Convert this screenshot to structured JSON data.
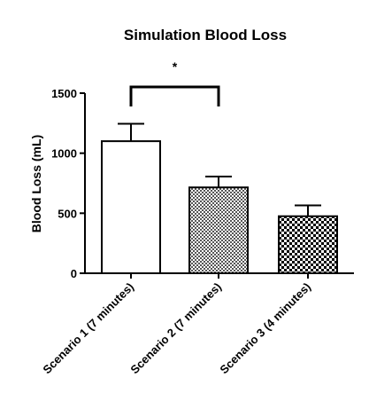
{
  "chart_data": {
    "type": "bar",
    "title": "Simulation Blood Loss",
    "xlabel": "",
    "ylabel": "Blood Loss (mL)",
    "ylim": [
      0,
      1500
    ],
    "yticks": [
      "0",
      "500",
      "1000",
      "1500"
    ],
    "categories": [
      "Scenario 1 (7 minutes)",
      "Scenario 2 (7 minutes)",
      "Scenario 3 (4 minutes)"
    ],
    "values": [
      1100,
      715,
      475
    ],
    "error": [
      145,
      90,
      90
    ],
    "fills": [
      "white",
      "fine-checker",
      "coarse-checker"
    ],
    "significance": {
      "between": [
        0,
        1
      ],
      "label": "*"
    },
    "grid": false,
    "legend": "none"
  }
}
